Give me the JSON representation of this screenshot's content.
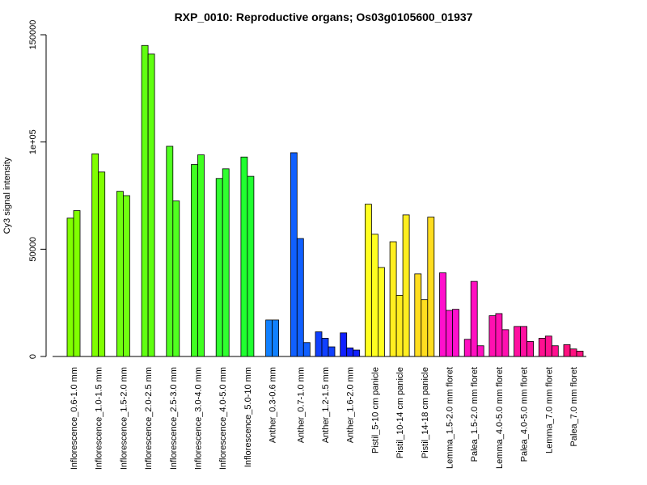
{
  "chart_data": {
    "type": "bar",
    "title": "RXP_0010: Reproductive organs; Os03g0105600_01937",
    "ylabel": "Cy3 signal intensity",
    "xlabel": "",
    "ylim": [
      0,
      150000
    ],
    "yticks": [
      0,
      50000,
      100000,
      150000
    ],
    "ytick_labels": [
      "0",
      "50000",
      "1e+05",
      "150000"
    ],
    "grid": false,
    "legend": "none",
    "groups": [
      {
        "label": "Inflorescence_0.6-1.0 mm",
        "color": "#80ff00",
        "values": [
          64500,
          68000
        ]
      },
      {
        "label": "Inflorescence_1.0-1.5 mm",
        "color": "#80ff00",
        "values": [
          94500,
          86000
        ]
      },
      {
        "label": "Inflorescence_1.5-2.0 mm",
        "color": "#70ff10",
        "values": [
          77000,
          75000
        ]
      },
      {
        "label": "Inflorescence_2.0-2.5 mm",
        "color": "#60ff10",
        "values": [
          145000,
          141000
        ]
      },
      {
        "label": "Inflorescence_2.5-3.0 mm",
        "color": "#50ff20",
        "values": [
          98000,
          72500
        ]
      },
      {
        "label": "Inflorescence_3.0-4.0 mm",
        "color": "#40ff20",
        "values": [
          89500,
          94000
        ]
      },
      {
        "label": "Inflorescence_4.0-5.0 mm",
        "color": "#30ff30",
        "values": [
          83000,
          87500
        ]
      },
      {
        "label": "Inflorescence_5.0-10 mm",
        "color": "#20ff30",
        "values": [
          93000,
          84000
        ]
      },
      {
        "label": "Anther_0.3-0.6 mm",
        "color": "#1080ff",
        "values": [
          17000,
          17000
        ]
      },
      {
        "label": "Anther_0.7-1.0 mm",
        "color": "#1060ff",
        "values": [
          95000,
          55000,
          6500
        ]
      },
      {
        "label": "Anther_1.2-1.5 mm",
        "color": "#1040ff",
        "values": [
          11500,
          8500,
          4500
        ]
      },
      {
        "label": "Anther_1.6-2.0 mm",
        "color": "#1020ff",
        "values": [
          11000,
          4000,
          3000
        ]
      },
      {
        "label": "Pistil_5-10 cm panicle",
        "color": "#ffff20",
        "values": [
          71000,
          57000,
          41500
        ]
      },
      {
        "label": "Pistil_10-14 cm panicle",
        "color": "#ffee20",
        "values": [
          53500,
          28500,
          66000
        ]
      },
      {
        "label": "Pistil_14-18 cm panicle",
        "color": "#ffdd20",
        "values": [
          38500,
          26500,
          65000
        ]
      },
      {
        "label": "Lemma_1.5-2.0 mm floret",
        "color": "#ff10cc",
        "values": [
          39000,
          21500,
          22000
        ]
      },
      {
        "label": "Palea_1.5-2.0 mm floret",
        "color": "#ff10c0",
        "values": [
          8000,
          35000,
          5000
        ]
      },
      {
        "label": "Lemma_4.0-5.0 mm floret",
        "color": "#ff10b0",
        "values": [
          19000,
          20000,
          12500
        ]
      },
      {
        "label": "Palea_4.0-5.0 mm floret",
        "color": "#ff10a0",
        "values": [
          14000,
          14000,
          7000
        ]
      },
      {
        "label": "Lemma_7.0 mm floret",
        "color": "#ff1090",
        "values": [
          8500,
          9500,
          5000
        ]
      },
      {
        "label": "Palea_7.0 mm floret",
        "color": "#ff1080",
        "values": [
          5500,
          3500,
          2500
        ]
      }
    ]
  }
}
